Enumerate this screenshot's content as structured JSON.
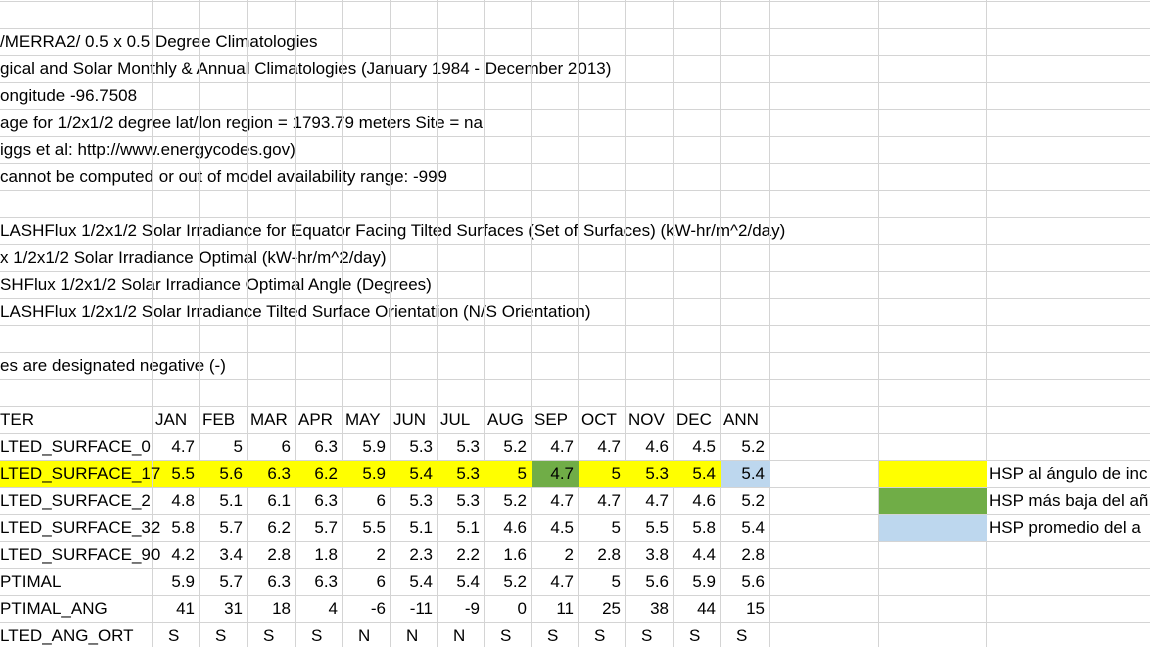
{
  "colors": {
    "grid": "#d4d4d4",
    "yellow": "#ffff00",
    "green": "#70ad47",
    "light_blue": "#bdd7ee"
  },
  "info_lines": [
    "/MERRA2/ 0.5 x 0.5 Degree Climatologies",
    "gical and Solar Monthly & Annual Climatologies (January 1984 - December 2013)",
    "ongitude -96.7508",
    "age for 1/2x1/2 degree lat/lon region = 1793.79 meters   Site = na",
    "iggs et al: http://www.energycodes.gov)",
    "cannot be computed or out of model availability range: -999",
    "",
    "LASHFlux 1/2x1/2 Solar Irradiance for Equator Facing Tilted Surfaces (Set of Surfaces) (kW-hr/m^2/day)",
    "x 1/2x1/2 Solar Irradiance Optimal (kW-hr/m^2/day)",
    "SHFlux 1/2x1/2 Solar Irradiance Optimal Angle (Degrees)",
    "LASHFlux 1/2x1/2 Solar Irradiance Tilted Surface Orientation (N/S Orientation)",
    "",
    "es are designated negative (-)"
  ],
  "table": {
    "header_label": "TER",
    "months": [
      "JAN",
      "FEB",
      "MAR",
      "APR",
      "MAY",
      "JUN",
      "JUL",
      "AUG",
      "SEP",
      "OCT",
      "NOV",
      "DEC",
      "ANN"
    ],
    "rows": [
      {
        "label": "LTED_SURFACE_0",
        "values": [
          "4.7",
          "5",
          "6",
          "6.3",
          "5.9",
          "5.3",
          "5.3",
          "5.2",
          "4.7",
          "4.7",
          "4.6",
          "4.5",
          "5.2"
        ]
      },
      {
        "label": "LTED_SURFACE_17",
        "values": [
          "5.5",
          "5.6",
          "6.3",
          "6.2",
          "5.9",
          "5.4",
          "5.3",
          "5",
          "4.7",
          "5",
          "5.3",
          "5.4",
          "5.4"
        ]
      },
      {
        "label": "LTED_SURFACE_2",
        "values": [
          "4.8",
          "5.1",
          "6.1",
          "6.3",
          "6",
          "5.3",
          "5.3",
          "5.2",
          "4.7",
          "4.7",
          "4.7",
          "4.6",
          "5.2"
        ]
      },
      {
        "label": "LTED_SURFACE_32",
        "values": [
          "5.8",
          "5.7",
          "6.2",
          "5.7",
          "5.5",
          "5.1",
          "5.1",
          "4.6",
          "4.5",
          "5",
          "5.5",
          "5.8",
          "5.4"
        ]
      },
      {
        "label": "LTED_SURFACE_90",
        "values": [
          "4.2",
          "3.4",
          "2.8",
          "1.8",
          "2",
          "2.3",
          "2.2",
          "1.6",
          "2",
          "2.8",
          "3.8",
          "4.4",
          "2.8"
        ]
      },
      {
        "label": "PTIMAL",
        "values": [
          "5.9",
          "5.7",
          "6.3",
          "6.3",
          "6",
          "5.4",
          "5.4",
          "5.2",
          "4.7",
          "5",
          "5.6",
          "5.9",
          "5.6"
        ]
      },
      {
        "label": "PTIMAL_ANG",
        "values": [
          "41",
          "31",
          "18",
          "4",
          "-6",
          "-11",
          "-9",
          "0",
          "11",
          "25",
          "38",
          "44",
          "15"
        ]
      },
      {
        "label": "LTED_ANG_ORT",
        "values": [
          "S",
          "S",
          "S",
          "S",
          "N",
          "N",
          "N",
          "S",
          "S",
          "S",
          "S",
          "S",
          "S"
        ]
      }
    ]
  },
  "legend": [
    {
      "color": "yellow",
      "text": "HSP al ángulo de inc"
    },
    {
      "color": "green",
      "text": "HSP más baja del añ"
    },
    {
      "color": "light_blue",
      "text": "HSP promedio del a"
    }
  ]
}
